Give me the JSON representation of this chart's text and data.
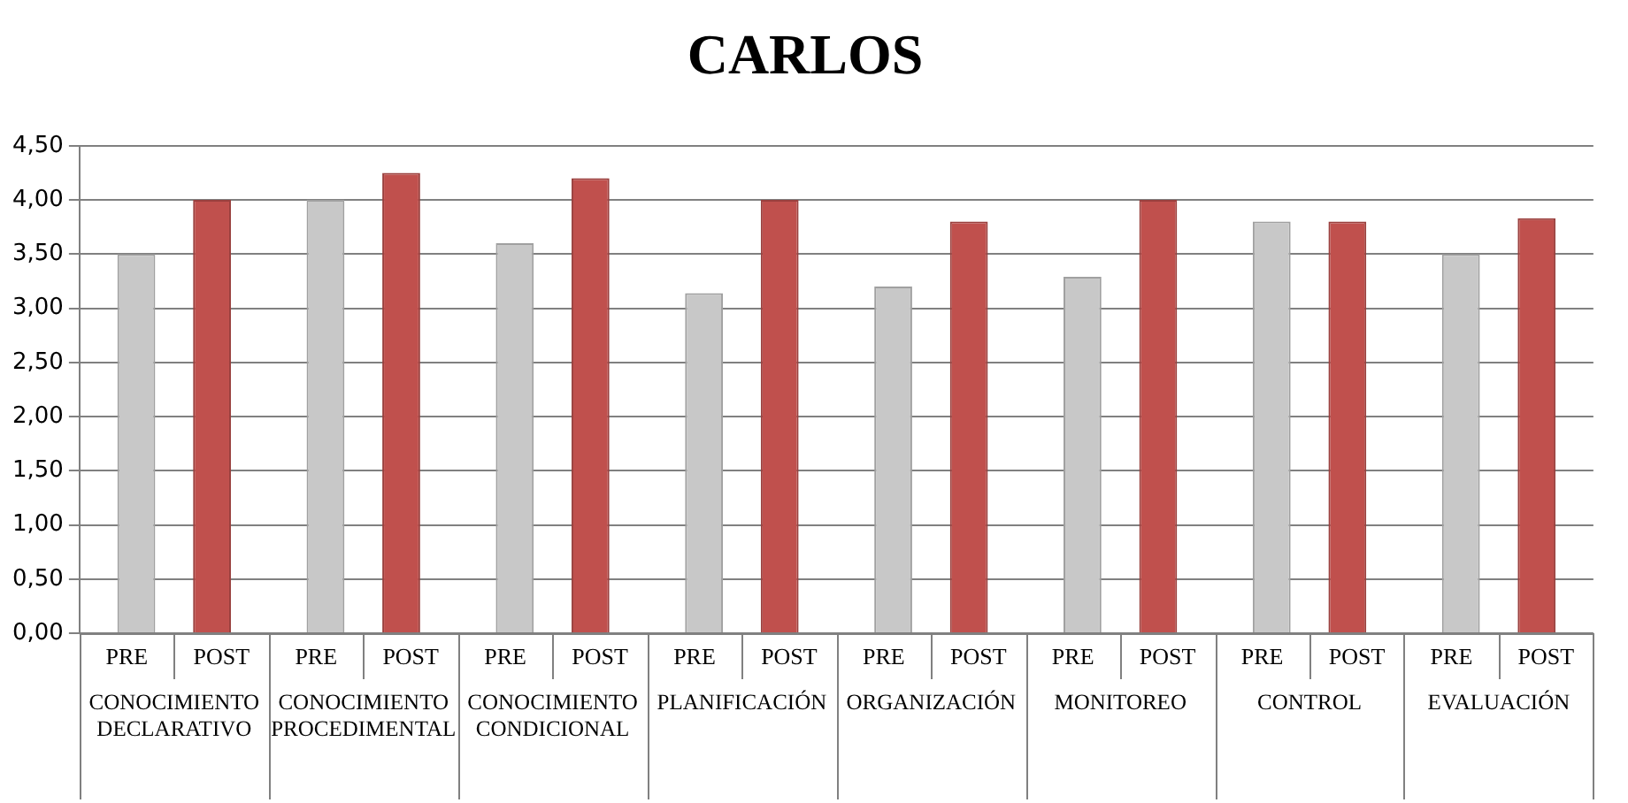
{
  "chart_data": {
    "type": "bar",
    "title": "CARLOS",
    "categories": [
      "CONOCIMIENTO DECLARATIVO",
      "CONOCIMIENTO PROCEDIMENTAL",
      "CONOCIMIENTO CONDICIONAL",
      "PLANIFICACIÓN",
      "ORGANIZACIÓN",
      "MONITOREO",
      "CONTROL",
      "EVALUACIÓN"
    ],
    "series": [
      {
        "name": "PRE",
        "color": "#c8c8c8",
        "values": [
          3.5,
          4.0,
          3.6,
          3.14,
          3.2,
          3.29,
          3.8,
          3.5
        ]
      },
      {
        "name": "POST",
        "color": "#c0504d",
        "values": [
          4.0,
          4.25,
          4.2,
          4.0,
          3.8,
          4.0,
          3.8,
          3.83
        ]
      }
    ],
    "ylim": [
      0,
      4.5
    ],
    "yticks": [
      {
        "value": 0,
        "label": "0,00"
      },
      {
        "value": 0.5,
        "label": "0,50"
      },
      {
        "value": 1,
        "label": "1,00"
      },
      {
        "value": 1.5,
        "label": "1,50"
      },
      {
        "value": 2,
        "label": "2,00"
      },
      {
        "value": 2.5,
        "label": "2,50"
      },
      {
        "value": 3,
        "label": "3,00"
      },
      {
        "value": 3.5,
        "label": "3,50"
      },
      {
        "value": 4,
        "label": "4,00"
      },
      {
        "value": 4.5,
        "label": "4,50"
      }
    ],
    "grid": "y",
    "legend": false
  }
}
